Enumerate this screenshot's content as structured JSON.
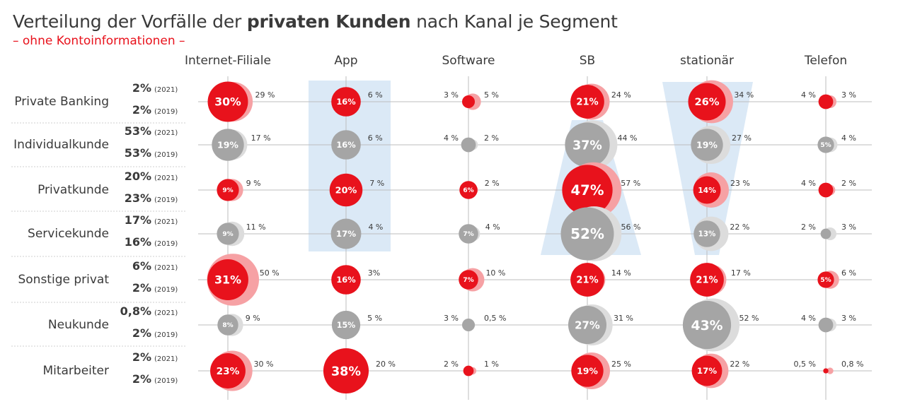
{
  "title": {
    "pre": "Verteilung der Vorfälle der ",
    "bold": "privaten Kunden",
    "post": " nach Kanal je Segment"
  },
  "subtitle": "– ohne Kontoinformationen –",
  "colors": {
    "highlight": "#e8121c",
    "highlight_light": "#f6a1a4",
    "neutral": "#a5a5a5",
    "neutral_light": "#dcdcdc",
    "band": "#dbe9f6"
  },
  "chart_data": {
    "type": "bubble",
    "years": [
      "(2021)",
      "(2019)"
    ],
    "channels": [
      "Internet-Filiale",
      "App",
      "Software",
      "SB",
      "stationär",
      "Telefon"
    ],
    "segments": [
      {
        "name": "Private Banking",
        "share_2021": "2%",
        "share_2019": "2%",
        "highlight": true,
        "cells": [
          {
            "v2021": 30,
            "label2021": "30%",
            "label2019": "29 %"
          },
          {
            "v2021": 16,
            "label2021": "16%",
            "label2019": "6 %"
          },
          {
            "v2021": 3,
            "label2021": "3 %",
            "label2019": "5 %"
          },
          {
            "v2021": 21,
            "label2021": "21%",
            "label2019": "24 %"
          },
          {
            "v2021": 26,
            "label2021": "26%",
            "label2019": "34 %"
          },
          {
            "v2021": 4,
            "label2021": "4 %",
            "label2019": "3 %"
          }
        ]
      },
      {
        "name": "Individualkunde",
        "share_2021": "53%",
        "share_2019": "53%",
        "highlight": false,
        "cells": [
          {
            "v2021": 19,
            "label2021": "19%",
            "label2019": "17 %"
          },
          {
            "v2021": 16,
            "label2021": "16%",
            "label2019": "6 %"
          },
          {
            "v2021": 4,
            "label2021": "4 %",
            "label2019": "2 %"
          },
          {
            "v2021": 37,
            "label2021": "37%",
            "label2019": "44 %"
          },
          {
            "v2021": 19,
            "label2021": "19%",
            "label2019": "27 %"
          },
          {
            "v2021": 5,
            "label2021": "5%",
            "label2019": "4 %"
          }
        ]
      },
      {
        "name": "Privatkunde",
        "share_2021": "20%",
        "share_2019": "23%",
        "highlight": true,
        "cells": [
          {
            "v2021": 9,
            "label2021": "9%",
            "label2019": "9 %"
          },
          {
            "v2021": 20,
            "label2021": "20%",
            "label2019": "7 %"
          },
          {
            "v2021": 6,
            "label2021": "6%",
            "label2019": "2 %"
          },
          {
            "v2021": 47,
            "label2021": "47%",
            "label2019": "57 %"
          },
          {
            "v2021": 14,
            "label2021": "14%",
            "label2019": "23 %"
          },
          {
            "v2021": 4,
            "label2021": "4 %",
            "label2019": "2 %"
          }
        ]
      },
      {
        "name": "Servicekunde",
        "share_2021": "17%",
        "share_2019": "16%",
        "highlight": false,
        "cells": [
          {
            "v2021": 9,
            "label2021": "9%",
            "label2019": "11 %"
          },
          {
            "v2021": 17,
            "label2021": "17%",
            "label2019": "4 %"
          },
          {
            "v2021": 7,
            "label2021": "7%",
            "label2019": "4 %"
          },
          {
            "v2021": 52,
            "label2021": "52%",
            "label2019": "56 %"
          },
          {
            "v2021": 13,
            "label2021": "13%",
            "label2019": "22 %"
          },
          {
            "v2021": 2,
            "label2021": "2 %",
            "label2019": "3 %"
          }
        ]
      },
      {
        "name": "Sonstige privat",
        "share_2021": "6%",
        "share_2019": "2%",
        "highlight": true,
        "cells": [
          {
            "v2021": 31,
            "label2021": "31%",
            "label2019": "50 %"
          },
          {
            "v2021": 16,
            "label2021": "16%",
            "label2019": "3%"
          },
          {
            "v2021": 7,
            "label2021": "7%",
            "label2019": "10 %"
          },
          {
            "v2021": 21,
            "label2021": "21%",
            "label2019": "14 %"
          },
          {
            "v2021": 21,
            "label2021": "21%",
            "label2019": "17 %"
          },
          {
            "v2021": 5,
            "label2021": "5%",
            "label2019": "6 %"
          }
        ]
      },
      {
        "name": "Neukunde",
        "share_2021": "0,8%",
        "share_2019": "2%",
        "highlight": false,
        "cells": [
          {
            "v2021": 8,
            "label2021": "8%",
            "label2019": "9 %"
          },
          {
            "v2021": 15,
            "label2021": "15%",
            "label2019": "5 %"
          },
          {
            "v2021": 3,
            "label2021": "3 %",
            "label2019": "0,5 %"
          },
          {
            "v2021": 27,
            "label2021": "27%",
            "label2019": "31 %"
          },
          {
            "v2021": 43,
            "label2021": "43%",
            "label2019": "52 %"
          },
          {
            "v2021": 4,
            "label2021": "4 %",
            "label2019": "3 %"
          }
        ]
      },
      {
        "name": "Mitarbeiter",
        "share_2021": "2%",
        "share_2019": "2%",
        "highlight": true,
        "cells": [
          {
            "v2021": 23,
            "label2021": "23%",
            "label2019": "30 %"
          },
          {
            "v2021": 38,
            "label2021": "38%",
            "label2019": "20 %"
          },
          {
            "v2021": 2,
            "label2021": "2 %",
            "label2019": "1 %"
          },
          {
            "v2021": 19,
            "label2021": "19%",
            "label2019": "25 %"
          },
          {
            "v2021": 17,
            "label2021": "17%",
            "label2019": "22 %"
          },
          {
            "v2021": 0.5,
            "label2021": "0,5 %",
            "label2019": "0,8 %"
          }
        ]
      }
    ]
  }
}
